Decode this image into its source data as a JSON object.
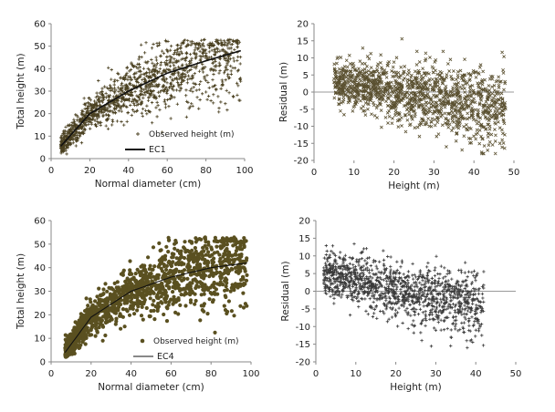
{
  "chart_data": [
    {
      "type": "scatter",
      "xlabel": "Normal diameter (cm)",
      "ylabel": "Total height (m)",
      "xlim": [
        0,
        100
      ],
      "ylim": [
        0,
        60
      ],
      "xticks": [
        "0",
        "20",
        "40",
        "60",
        "80",
        "100"
      ],
      "yticks": [
        "0",
        "10",
        "20",
        "30",
        "40",
        "50",
        "60"
      ],
      "grid": false,
      "legend": {
        "position": "bottom-right",
        "entries": [
          {
            "label": "Observed height (m)",
            "kind": "points"
          },
          {
            "label": "EC1",
            "kind": "line"
          }
        ]
      },
      "point_style": "plus",
      "point_color": "#4a4020",
      "model": {
        "name": "EC1",
        "type": "line",
        "x": [
          5,
          20,
          40,
          60,
          80,
          98
        ],
        "y": [
          5.5,
          20,
          30,
          38,
          43.5,
          48
        ]
      },
      "observations": {
        "n": 1400,
        "x_range": [
          5,
          98
        ],
        "note": "dense cloud of observed heights around the fitted curve"
      }
    },
    {
      "type": "scatter",
      "xlabel": "Height (m)",
      "ylabel": "Residual (m)",
      "xlim": [
        0,
        50
      ],
      "ylim": [
        -20,
        20
      ],
      "xticks": [
        "0",
        "10",
        "20",
        "30",
        "40",
        "50"
      ],
      "yticks": [
        "-20",
        "-15",
        "-10",
        "-5",
        "0",
        "5",
        "10",
        "15",
        "20"
      ],
      "reference_line": 0,
      "point_style": "cross",
      "point_color": "#5a5030",
      "observations": {
        "n": 1400,
        "x_range": [
          5,
          48
        ],
        "y_range": [
          -18,
          16
        ]
      }
    },
    {
      "type": "scatter",
      "xlabel": "Normal diameter (cm)",
      "ylabel": "Total height (m)",
      "xlim": [
        0,
        100
      ],
      "ylim": [
        0,
        60
      ],
      "xticks": [
        "0",
        "20",
        "40",
        "60",
        "80",
        "100"
      ],
      "yticks": [
        "0",
        "10",
        "20",
        "30",
        "40",
        "50",
        "60"
      ],
      "legend": {
        "position": "bottom-right",
        "entries": [
          {
            "label": "Observed height (m)",
            "kind": "points"
          },
          {
            "label": "EC4",
            "kind": "line"
          }
        ]
      },
      "point_style": "dot",
      "point_color": "#5a5020",
      "model": {
        "name": "EC4",
        "type": "line",
        "x": [
          7,
          20,
          40,
          60,
          80,
          98
        ],
        "y": [
          4,
          19,
          30,
          36,
          40,
          42
        ]
      },
      "observations": {
        "n": 1400,
        "x_range": [
          7,
          98
        ]
      }
    },
    {
      "type": "scatter",
      "xlabel": "Height (m)",
      "ylabel": "Residual (m)",
      "xlim": [
        0,
        50
      ],
      "ylim": [
        -20,
        20
      ],
      "xticks": [
        "0",
        "10",
        "20",
        "30",
        "40",
        "50"
      ],
      "yticks": [
        "-20",
        "-15",
        "-10",
        "-5",
        "0",
        "5",
        "10",
        "15",
        "20"
      ],
      "reference_line": 0,
      "point_style": "plus",
      "point_color": "#3a3a3a",
      "observations": {
        "n": 1300,
        "x_range": [
          2,
          42
        ],
        "y_range": [
          -16,
          16
        ]
      }
    }
  ]
}
